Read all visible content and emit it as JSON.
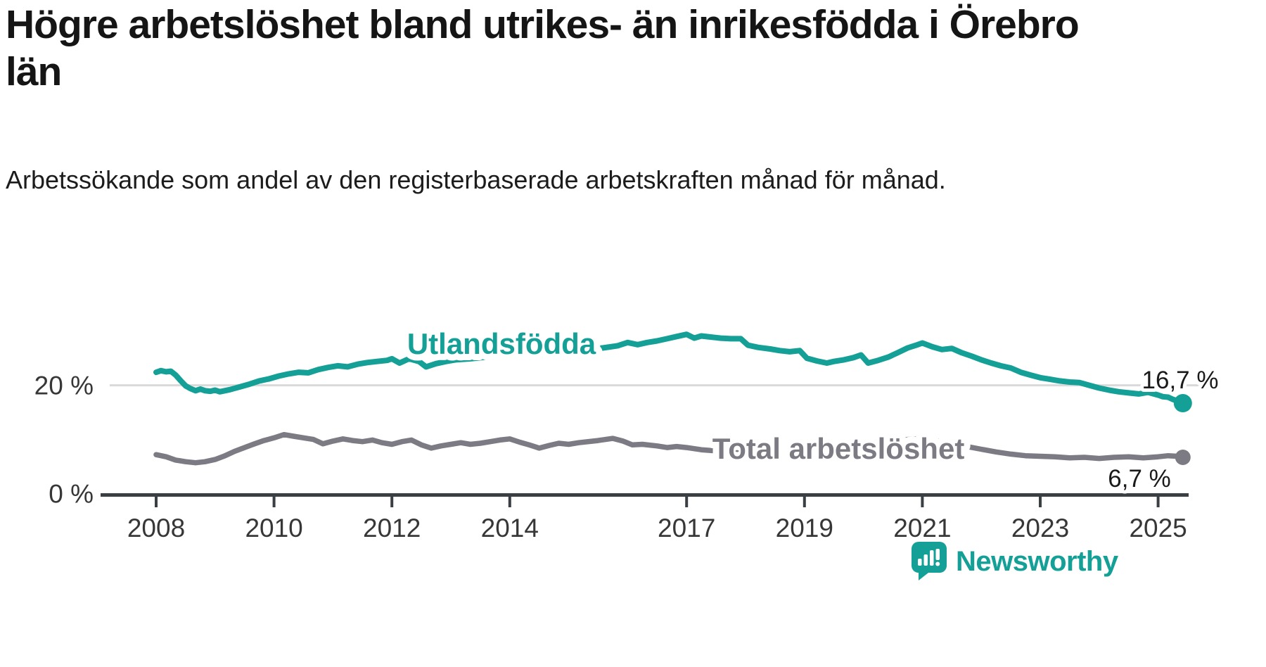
{
  "title": "Högre arbetslöshet bland utrikes- än inrikesfödda i Örebro län",
  "subtitle": "Arbetssökande som andel av den registerbaserade arbetskraften månad för månad.",
  "branding": {
    "name": "Newsworthy",
    "icon": "newsworthy-logo",
    "color": "#14a096"
  },
  "chart_data": {
    "type": "line",
    "title": "Högre arbetslöshet bland utrikes- än inrikesfödda i Örebro län",
    "subtitle": "Arbetssökande som andel av den registerbaserade arbetskraften månad för månad.",
    "unit": "%",
    "x_axis": {
      "range": [
        2008,
        2025.42
      ],
      "ticks": [
        2008,
        2010,
        2012,
        2014,
        2017,
        2019,
        2021,
        2023,
        2025
      ]
    },
    "y_axis": {
      "range": [
        0,
        32
      ],
      "ticks": [
        {
          "value": 20,
          "label": "20 %"
        },
        {
          "value": 0,
          "label": "0 %"
        }
      ]
    },
    "grid": {
      "y_values": [
        20
      ],
      "color": "#d9d9d9"
    },
    "legend_position": "labels-on-lines",
    "series": [
      {
        "name": "Utlandsfödda",
        "color": "#14a096",
        "last_value": 16.7,
        "end_label": "16,7 %",
        "points": [
          [
            2008.0,
            22.4
          ],
          [
            2008.08,
            22.7
          ],
          [
            2008.17,
            22.5
          ],
          [
            2008.25,
            22.6
          ],
          [
            2008.33,
            21.9
          ],
          [
            2008.42,
            20.8
          ],
          [
            2008.5,
            19.9
          ],
          [
            2008.58,
            19.4
          ],
          [
            2008.67,
            19.0
          ],
          [
            2008.75,
            19.3
          ],
          [
            2008.83,
            19.0
          ],
          [
            2008.92,
            18.9
          ],
          [
            2009.0,
            19.1
          ],
          [
            2009.08,
            18.8
          ],
          [
            2009.25,
            19.2
          ],
          [
            2009.42,
            19.7
          ],
          [
            2009.58,
            20.2
          ],
          [
            2009.75,
            20.8
          ],
          [
            2009.92,
            21.2
          ],
          [
            2010.08,
            21.7
          ],
          [
            2010.25,
            22.1
          ],
          [
            2010.42,
            22.4
          ],
          [
            2010.58,
            22.3
          ],
          [
            2010.75,
            22.9
          ],
          [
            2010.92,
            23.3
          ],
          [
            2011.08,
            23.6
          ],
          [
            2011.25,
            23.4
          ],
          [
            2011.42,
            23.9
          ],
          [
            2011.58,
            24.2
          ],
          [
            2011.75,
            24.4
          ],
          [
            2011.92,
            24.6
          ],
          [
            2012.0,
            24.9
          ],
          [
            2012.13,
            24.1
          ],
          [
            2012.29,
            24.9
          ],
          [
            2012.46,
            24.4
          ],
          [
            2012.58,
            23.4
          ],
          [
            2012.75,
            24.0
          ],
          [
            2012.92,
            24.4
          ],
          [
            2013.08,
            24.7
          ],
          [
            2013.33,
            24.9
          ],
          [
            2013.58,
            25.2
          ],
          [
            2013.83,
            25.4
          ],
          [
            2014.08,
            25.7
          ],
          [
            2014.33,
            25.9
          ],
          [
            2014.58,
            26.1
          ],
          [
            2014.83,
            26.3
          ],
          [
            2015.08,
            26.5
          ],
          [
            2015.33,
            26.7
          ],
          [
            2015.58,
            26.9
          ],
          [
            2015.83,
            27.3
          ],
          [
            2016.0,
            27.9
          ],
          [
            2016.17,
            27.5
          ],
          [
            2016.33,
            27.9
          ],
          [
            2016.5,
            28.2
          ],
          [
            2016.67,
            28.6
          ],
          [
            2016.83,
            29.0
          ],
          [
            2017.0,
            29.4
          ],
          [
            2017.13,
            28.7
          ],
          [
            2017.25,
            29.1
          ],
          [
            2017.42,
            28.9
          ],
          [
            2017.58,
            28.7
          ],
          [
            2017.75,
            28.6
          ],
          [
            2017.92,
            28.6
          ],
          [
            2018.04,
            27.4
          ],
          [
            2018.21,
            27.0
          ],
          [
            2018.42,
            26.7
          ],
          [
            2018.58,
            26.4
          ],
          [
            2018.75,
            26.2
          ],
          [
            2018.92,
            26.4
          ],
          [
            2019.04,
            25.0
          ],
          [
            2019.21,
            24.5
          ],
          [
            2019.38,
            24.1
          ],
          [
            2019.5,
            24.4
          ],
          [
            2019.67,
            24.7
          ],
          [
            2019.83,
            25.1
          ],
          [
            2019.96,
            25.6
          ],
          [
            2020.08,
            24.1
          ],
          [
            2020.25,
            24.6
          ],
          [
            2020.42,
            25.2
          ],
          [
            2020.58,
            26.0
          ],
          [
            2020.75,
            26.9
          ],
          [
            2020.92,
            27.5
          ],
          [
            2021.0,
            27.8
          ],
          [
            2021.17,
            27.1
          ],
          [
            2021.33,
            26.6
          ],
          [
            2021.5,
            26.8
          ],
          [
            2021.67,
            26.0
          ],
          [
            2021.83,
            25.4
          ],
          [
            2022.0,
            24.7
          ],
          [
            2022.17,
            24.1
          ],
          [
            2022.33,
            23.6
          ],
          [
            2022.5,
            23.2
          ],
          [
            2022.67,
            22.4
          ],
          [
            2022.83,
            21.9
          ],
          [
            2023.0,
            21.4
          ],
          [
            2023.17,
            21.1
          ],
          [
            2023.33,
            20.8
          ],
          [
            2023.5,
            20.6
          ],
          [
            2023.67,
            20.5
          ],
          [
            2023.83,
            20.0
          ],
          [
            2024.0,
            19.5
          ],
          [
            2024.17,
            19.1
          ],
          [
            2024.33,
            18.8
          ],
          [
            2024.5,
            18.6
          ],
          [
            2024.67,
            18.4
          ],
          [
            2024.83,
            18.7
          ],
          [
            2025.0,
            18.2
          ],
          [
            2025.08,
            17.9
          ],
          [
            2025.17,
            17.8
          ],
          [
            2025.25,
            17.4
          ],
          [
            2025.33,
            17.1
          ],
          [
            2025.42,
            16.7
          ]
        ]
      },
      {
        "name": "Total arbetslöshet",
        "color": "#7c7b83",
        "last_value": 6.7,
        "end_label": "6,7 %",
        "points": [
          [
            2008.0,
            7.2
          ],
          [
            2008.17,
            6.8
          ],
          [
            2008.33,
            6.2
          ],
          [
            2008.5,
            5.9
          ],
          [
            2008.67,
            5.7
          ],
          [
            2008.83,
            5.9
          ],
          [
            2009.0,
            6.3
          ],
          [
            2009.17,
            7.0
          ],
          [
            2009.33,
            7.8
          ],
          [
            2009.5,
            8.5
          ],
          [
            2009.67,
            9.2
          ],
          [
            2009.83,
            9.8
          ],
          [
            2010.0,
            10.3
          ],
          [
            2010.17,
            10.9
          ],
          [
            2010.33,
            10.6
          ],
          [
            2010.5,
            10.3
          ],
          [
            2010.67,
            10.0
          ],
          [
            2010.83,
            9.2
          ],
          [
            2011.0,
            9.7
          ],
          [
            2011.17,
            10.1
          ],
          [
            2011.33,
            9.8
          ],
          [
            2011.5,
            9.6
          ],
          [
            2011.67,
            9.9
          ],
          [
            2011.83,
            9.4
          ],
          [
            2012.0,
            9.1
          ],
          [
            2012.17,
            9.6
          ],
          [
            2012.33,
            9.9
          ],
          [
            2012.5,
            9.0
          ],
          [
            2012.67,
            8.4
          ],
          [
            2012.83,
            8.8
          ],
          [
            2013.0,
            9.1
          ],
          [
            2013.17,
            9.4
          ],
          [
            2013.33,
            9.1
          ],
          [
            2013.5,
            9.3
          ],
          [
            2013.67,
            9.6
          ],
          [
            2013.83,
            9.9
          ],
          [
            2014.0,
            10.1
          ],
          [
            2014.17,
            9.5
          ],
          [
            2014.33,
            9.0
          ],
          [
            2014.5,
            8.4
          ],
          [
            2014.67,
            8.9
          ],
          [
            2014.83,
            9.3
          ],
          [
            2015.0,
            9.1
          ],
          [
            2015.17,
            9.4
          ],
          [
            2015.5,
            9.8
          ],
          [
            2015.75,
            10.2
          ],
          [
            2015.92,
            9.7
          ],
          [
            2016.08,
            9.0
          ],
          [
            2016.25,
            9.1
          ],
          [
            2016.5,
            8.8
          ],
          [
            2016.67,
            8.5
          ],
          [
            2016.83,
            8.7
          ],
          [
            2017.0,
            8.5
          ],
          [
            2017.25,
            8.1
          ],
          [
            2017.5,
            7.9
          ],
          [
            2017.75,
            8.1
          ],
          [
            2018.0,
            7.8
          ],
          [
            2018.25,
            7.6
          ],
          [
            2018.5,
            7.7
          ],
          [
            2018.75,
            7.4
          ],
          [
            2019.0,
            7.2
          ],
          [
            2019.25,
            7.4
          ],
          [
            2019.5,
            7.2
          ],
          [
            2019.75,
            7.4
          ],
          [
            2020.0,
            7.7
          ],
          [
            2020.17,
            8.3
          ],
          [
            2020.33,
            9.1
          ],
          [
            2020.5,
            9.7
          ],
          [
            2020.75,
            10.0
          ],
          [
            2021.0,
            10.1
          ],
          [
            2021.25,
            9.7
          ],
          [
            2021.5,
            9.2
          ],
          [
            2021.75,
            8.7
          ],
          [
            2022.0,
            8.2
          ],
          [
            2022.25,
            7.7
          ],
          [
            2022.5,
            7.3
          ],
          [
            2022.75,
            7.0
          ],
          [
            2023.0,
            6.9
          ],
          [
            2023.25,
            6.8
          ],
          [
            2023.5,
            6.6
          ],
          [
            2023.75,
            6.7
          ],
          [
            2024.0,
            6.5
          ],
          [
            2024.25,
            6.7
          ],
          [
            2024.5,
            6.8
          ],
          [
            2024.75,
            6.6
          ],
          [
            2025.0,
            6.8
          ],
          [
            2025.17,
            7.0
          ],
          [
            2025.33,
            6.9
          ],
          [
            2025.42,
            6.7
          ]
        ]
      }
    ]
  }
}
